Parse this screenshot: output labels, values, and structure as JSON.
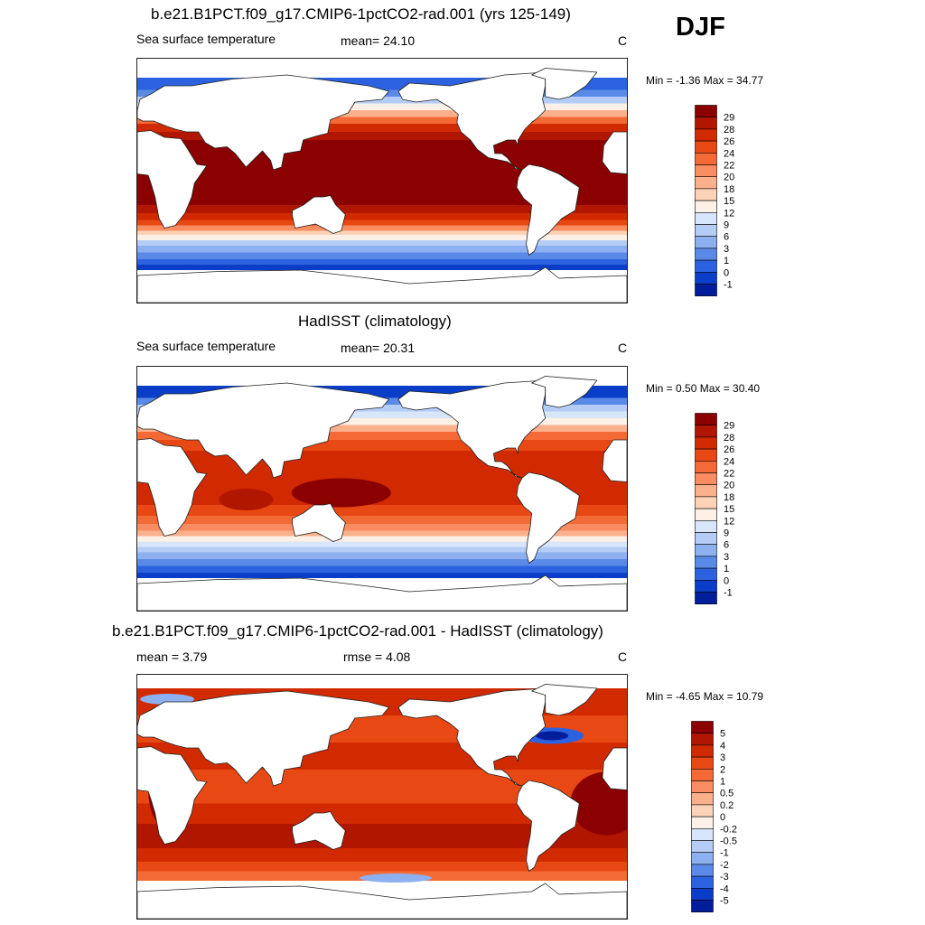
{
  "season": "DJF",
  "panels": [
    {
      "title": "b.e21.B1PCT.f09_g17.CMIP6-1pctCO2-rad.001 (yrs 125-149)",
      "left_label": "Sea surface temperature",
      "mid_label": "mean=  24.10",
      "units": "C",
      "minmax": "Min =  -1.36 Max =  34.77",
      "colorbar_labels": [
        "29",
        "28",
        "26",
        "24",
        "22",
        "20",
        "18",
        "15",
        "12",
        "9",
        "6",
        "3",
        "1",
        "0",
        "-1"
      ],
      "colorbar_colors": [
        "#8b0000",
        "#b01600",
        "#d12a00",
        "#e84814",
        "#f46a36",
        "#f98c60",
        "#fbb08c",
        "#fdd3b8",
        "#fdf0e6",
        "#d8e6fb",
        "#b5cdf6",
        "#8cb0f0",
        "#5a8ae8",
        "#2c62df",
        "#0a3ec8",
        "#001d9c"
      ],
      "map_style": "model"
    },
    {
      "title": "HadISST (climatology)",
      "left_label": "Sea surface temperature",
      "mid_label": "mean=  20.31",
      "units": "C",
      "minmax": "Min =   0.50 Max =  30.40",
      "colorbar_labels": [
        "29",
        "28",
        "26",
        "24",
        "22",
        "20",
        "18",
        "15",
        "12",
        "9",
        "6",
        "3",
        "1",
        "0",
        "-1"
      ],
      "colorbar_colors": [
        "#8b0000",
        "#b01600",
        "#d12a00",
        "#e84814",
        "#f46a36",
        "#f98c60",
        "#fbb08c",
        "#fdd3b8",
        "#fdf0e6",
        "#d8e6fb",
        "#b5cdf6",
        "#8cb0f0",
        "#5a8ae8",
        "#2c62df",
        "#0a3ec8",
        "#001d9c"
      ],
      "map_style": "obs"
    },
    {
      "title": "b.e21.B1PCT.f09_g17.CMIP6-1pctCO2-rad.001 - HadISST (climatology)",
      "left_label": "mean =   3.79",
      "mid_label": "rmse =   4.08",
      "units": "C",
      "minmax": "Min =  -4.65 Max =  10.79",
      "colorbar_labels": [
        "5",
        "4",
        "3",
        "2",
        "1",
        "0.5",
        "0.2",
        "0",
        "-0.2",
        "-0.5",
        "-1",
        "-2",
        "-3",
        "-4",
        "-5"
      ],
      "colorbar_colors": [
        "#8b0000",
        "#b01600",
        "#d12a00",
        "#e84814",
        "#f46a36",
        "#f98c60",
        "#fbb08c",
        "#fdd3b8",
        "#fdf0e6",
        "#d8e6fb",
        "#b5cdf6",
        "#8cb0f0",
        "#5a8ae8",
        "#2c62df",
        "#0a3ec8",
        "#001d9c"
      ],
      "map_style": "diff"
    }
  ]
}
